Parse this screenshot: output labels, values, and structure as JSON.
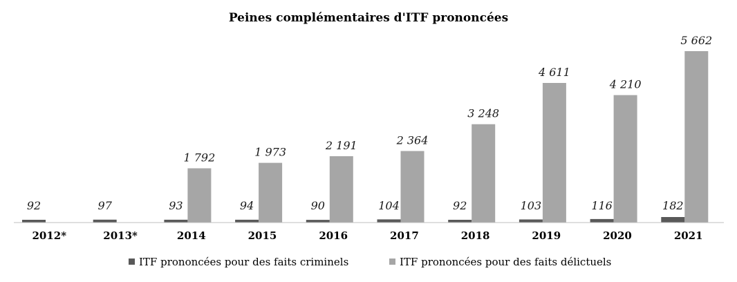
{
  "chart_data": {
    "type": "bar",
    "title": "Peines complémentaires d'ITF prononcées",
    "xlabel": "",
    "ylabel": "",
    "categories": [
      "2012*",
      "2013*",
      "2014",
      "2015",
      "2016",
      "2017",
      "2018",
      "2019",
      "2020",
      "2021"
    ],
    "series": [
      {
        "name": "ITF prononcées pour des faits criminels",
        "color": "#595959",
        "values": [
          92,
          97,
          93,
          94,
          90,
          104,
          92,
          103,
          116,
          182
        ],
        "labels": [
          "92",
          "97",
          "93",
          "94",
          "90",
          "104",
          "92",
          "103",
          "116",
          "182"
        ]
      },
      {
        "name": "ITF prononcées pour des faits délictuels",
        "color": "#a6a6a6",
        "values": [
          null,
          null,
          1792,
          1973,
          2191,
          2364,
          3248,
          4611,
          4210,
          5662
        ],
        "labels": [
          "",
          "",
          "1 792",
          "1 973",
          "2 191",
          "2 364",
          "3 248",
          "4 611",
          "4 210",
          "5 662"
        ]
      }
    ],
    "ylim": [
      0,
      5662
    ],
    "grid": false,
    "legend_position": "bottom",
    "data_labels": true
  }
}
